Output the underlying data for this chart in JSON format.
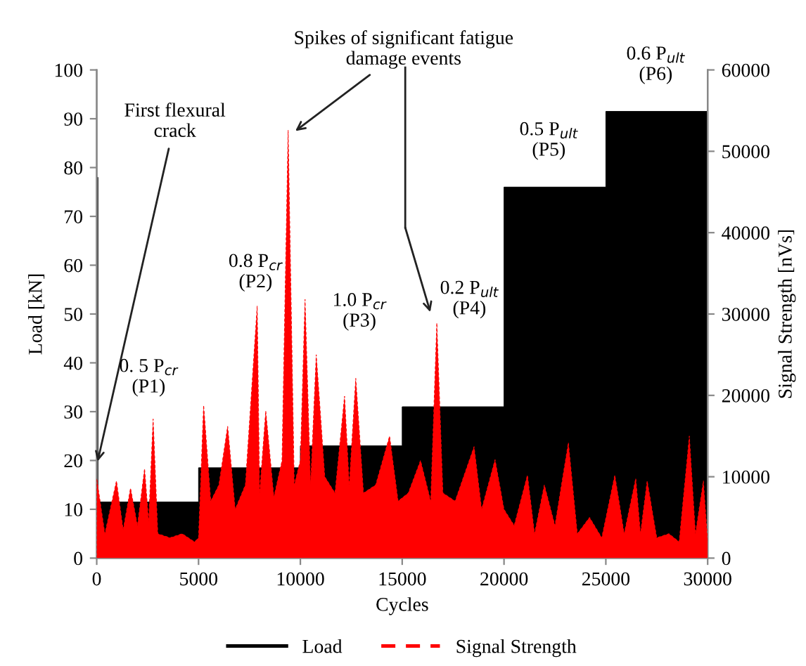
{
  "chart_data": {
    "type": "area",
    "xlabel": "Cycles",
    "ylabel": "Load [kN]",
    "y2label": "Signal Strength [nVs]",
    "xlim": [
      0,
      30000
    ],
    "xticks": [
      0,
      5000,
      10000,
      15000,
      20000,
      25000,
      30000
    ],
    "ylim": [
      0,
      100
    ],
    "yticks": [
      0,
      10,
      20,
      30,
      40,
      50,
      60,
      70,
      80,
      90,
      100
    ],
    "y2lim": [
      0,
      60000
    ],
    "y2ticks": [
      0,
      10000,
      20000,
      30000,
      40000,
      50000,
      60000
    ],
    "grid": false,
    "legend": "bottom",
    "series": [
      {
        "name": "Load",
        "color": "#000000",
        "line_style": "solid",
        "x": [
          0,
          0,
          60,
          60,
          5000,
          5000,
          10000,
          10000,
          15000,
          15000,
          20000,
          20000,
          25000,
          25000,
          30000,
          30000
        ],
        "values": [
          0,
          78,
          78,
          11.5,
          11.5,
          18.5,
          18.5,
          23,
          23,
          31,
          31,
          76,
          76,
          91.5,
          91.5,
          0
        ]
      },
      {
        "name": "Signal Strength",
        "color": "#ff0000",
        "line_style": "dashed",
        "axis": "y2",
        "x": [
          0,
          0,
          400,
          970,
          1300,
          1660,
          2000,
          2350,
          2550,
          2770,
          3000,
          3600,
          4200,
          4800,
          5000,
          5250,
          5600,
          6000,
          6430,
          6800,
          7300,
          7880,
          8000,
          8300,
          8700,
          9100,
          9400,
          9700,
          10000,
          10230,
          10500,
          10780,
          11200,
          11700,
          12170,
          12400,
          12720,
          13100,
          13700,
          14380,
          14800,
          15300,
          15900,
          16400,
          16700,
          17000,
          17600,
          18530,
          18900,
          19560,
          20000,
          20500,
          21150,
          21500,
          21980,
          22500,
          23160,
          23600,
          24200,
          24800,
          25440,
          25900,
          26470,
          26700,
          27030,
          27500,
          28100,
          28600,
          29100,
          29400,
          29790,
          30000
        ],
        "values": [
          0,
          9800,
          3000,
          9500,
          3500,
          8600,
          4000,
          11000,
          4500,
          17100,
          3000,
          2500,
          3000,
          2000,
          2500,
          18800,
          7000,
          9000,
          16200,
          6000,
          9000,
          31000,
          8000,
          18100,
          7500,
          12000,
          52600,
          9000,
          12000,
          31800,
          9000,
          25000,
          10000,
          8000,
          19900,
          9000,
          22100,
          8000,
          9000,
          15000,
          7000,
          8000,
          12000,
          7000,
          28900,
          8000,
          7000,
          13700,
          6000,
          12100,
          6000,
          4000,
          10200,
          3000,
          9000,
          4000,
          14200,
          3000,
          5000,
          2500,
          10200,
          3000,
          9800,
          3000,
          9500,
          2500,
          3000,
          2000,
          15000,
          3000,
          9500,
          2000
        ]
      }
    ],
    "annotations": [
      {
        "text": "First flexural\ncrack",
        "x": 0,
        "y": 19
      },
      {
        "text": "Spikes of significant fatigue\ndamage events",
        "x": 9600,
        "y": 87
      },
      "0. 5 P$_{cr}$\n(P1)",
      "0.8 P$_{cr}$\n(P2)",
      "1.0 P$_{cr}$\n(P3)",
      "0.2 P$_{ult}$\n(P4)",
      "0.5 P$_{ult}$\n(P5)",
      "0.6 P$_{ult}$\n(P6)"
    ]
  }
}
